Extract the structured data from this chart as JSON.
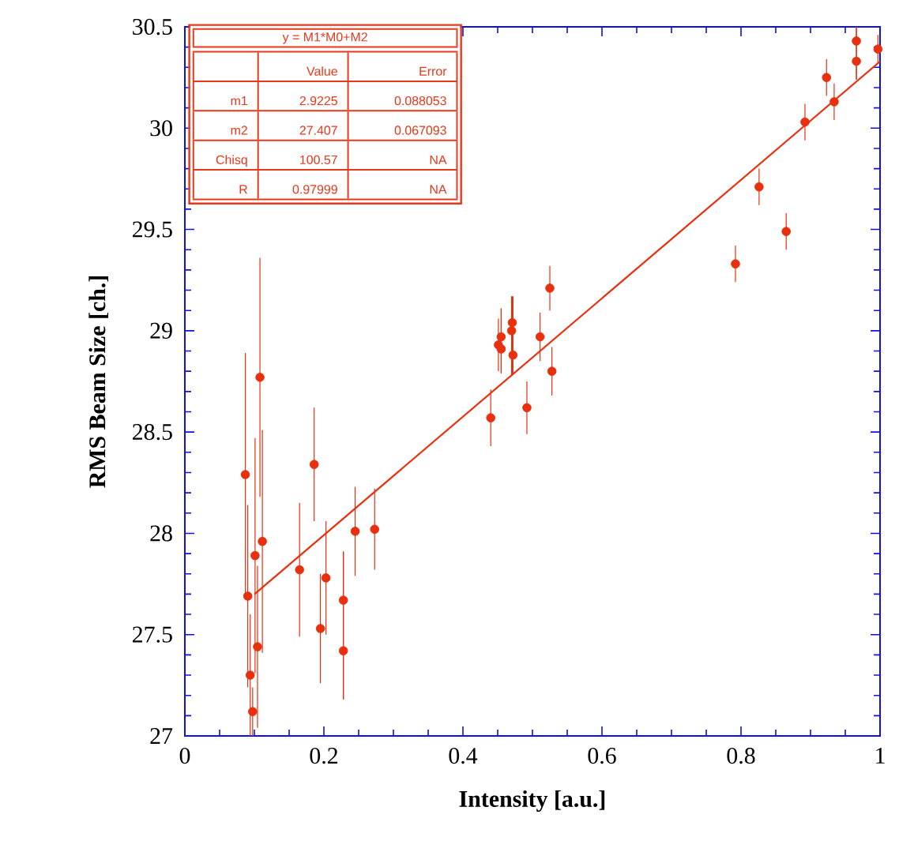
{
  "chart_data": {
    "type": "scatter",
    "xlabel": "Intensity [a.u.]",
    "ylabel": "RMS Beam Size [ch.]",
    "xlim": [
      0,
      1
    ],
    "ylim": [
      27,
      30.5
    ],
    "xticks": [
      0,
      0.2,
      0.4,
      0.6,
      0.8,
      1
    ],
    "yticks": [
      27,
      27.5,
      28,
      28.5,
      29,
      29.5,
      30,
      30.5
    ],
    "series": [
      {
        "color": "#e8300e",
        "x": [
          0.108,
          0.087,
          0.186,
          0.1115,
          0.101,
          0.165,
          0.203,
          0.245,
          0.273,
          0.0905,
          0.228,
          0.195,
          0.228,
          0.1045,
          0.094,
          0.0975,
          0.44,
          0.451,
          0.455,
          0.455,
          0.471,
          0.47,
          0.472,
          0.492,
          0.511,
          0.525,
          0.528,
          0.792,
          0.865,
          0.826,
          0.892,
          0.934,
          0.923,
          0.966,
          0.966,
          0.997
        ],
        "values": [
          28.77,
          28.29,
          28.34,
          27.96,
          27.89,
          27.82,
          27.78,
          28.01,
          28.02,
          27.69,
          27.67,
          27.53,
          27.42,
          27.44,
          27.3,
          27.12,
          28.57,
          28.93,
          28.97,
          28.91,
          29.04,
          29.0,
          28.88,
          28.62,
          28.97,
          29.21,
          28.8,
          29.33,
          29.49,
          29.71,
          30.03,
          30.13,
          30.25,
          30.33,
          30.43,
          30.39
        ],
        "errors": [
          0.59,
          0.6,
          0.28,
          0.55,
          0.58,
          0.33,
          0.28,
          0.22,
          0.2,
          0.45,
          [
            27.18,
            27.91
          ],
          0.27,
          [
            27.18,
            27.91
          ],
          0.4,
          0.3,
          0.12,
          0.14,
          0.13,
          [
            28.79,
            29.11
          ],
          [
            28.79,
            29.11
          ],
          [
            28.78,
            29.17
          ],
          [
            28.78,
            29.17
          ],
          [
            28.78,
            29.17
          ],
          0.13,
          0.12,
          0.11,
          0.12,
          0.09,
          0.09,
          0.09,
          0.09,
          0.09,
          0.09,
          [
            30.24,
            30.5
          ],
          [
            30.24,
            30.5
          ],
          0.07
        ]
      },
      {
        "type": "line",
        "color": "#e8300e",
        "x": [
          0.1,
          1
        ],
        "values": [
          27.699,
          30.329
        ]
      }
    ],
    "annotations": [
      "y  =  M1*M0+M2",
      "Value",
      "Error",
      "m1",
      "2.9225",
      "0.088053",
      "m2",
      "27.407",
      "0.067093",
      "Chisq",
      "100.57",
      "NA",
      "R",
      "0.97999",
      "NA"
    ]
  }
}
